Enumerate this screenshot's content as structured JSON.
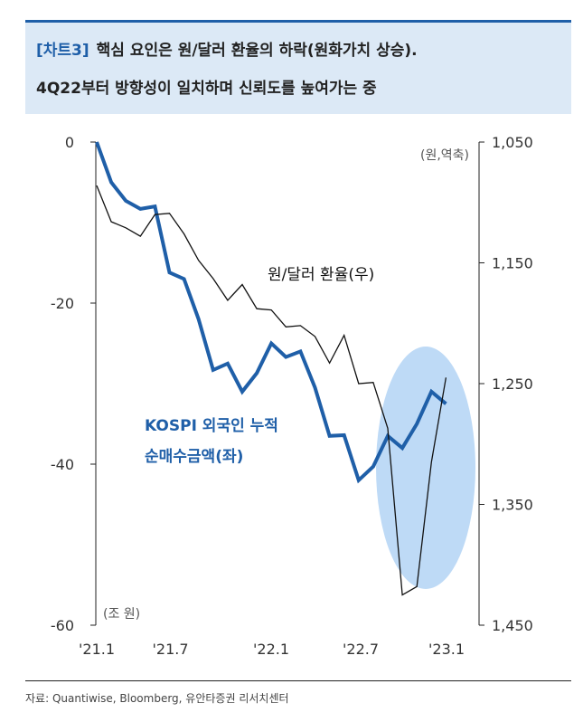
{
  "header": {
    "tag": "[차트3]",
    "line1": "핵심 요인은 원/달러 환율의 하락(원화가치 상승).",
    "line2": "4Q22부터 방향성이 일치하며 신뢰도를 높여가는 중"
  },
  "chart_data": {
    "type": "line",
    "x_ticks": [
      "'21.1",
      "'21.7",
      "'22.1",
      "'22.7",
      "'23.1"
    ],
    "y_left": {
      "ticks": [
        "0",
        "-20",
        "-40",
        "-60"
      ],
      "range": [
        -60,
        0
      ],
      "unit_label": "(조 원)"
    },
    "y_right": {
      "ticks": [
        "1,050",
        "1,150",
        "1,250",
        "1,350",
        "1,450"
      ],
      "range": [
        1050,
        1450
      ],
      "inverted": true,
      "unit_label": "(원,역축)"
    },
    "highlight": {
      "type": "ellipse",
      "color": "#b3d4f5",
      "period": "'22.9 - '23.1"
    },
    "series": [
      {
        "name": "KOSPI 외국인 누적\n순매수금액(좌)",
        "name_lines": [
          "KOSPI 외국인 누적",
          "순매수금액(좌)"
        ],
        "axis": "left",
        "color": "#1f5fa8",
        "x": [
          "2021-01",
          "2021-02",
          "2021-03",
          "2021-04",
          "2021-05",
          "2021-06",
          "2021-07",
          "2021-08",
          "2021-09",
          "2021-10",
          "2021-11",
          "2021-12",
          "2022-01",
          "2022-02",
          "2022-03",
          "2022-04",
          "2022-05",
          "2022-06",
          "2022-07",
          "2022-08",
          "2022-09",
          "2022-10",
          "2022-11",
          "2022-12",
          "2023-01"
        ],
        "values": [
          0,
          -5,
          -7.3,
          -8.3,
          -8.0,
          -16.2,
          -17.0,
          -22.0,
          -28.3,
          -27.5,
          -31.0,
          -28.7,
          -25.0,
          -26.7,
          -26.0,
          -30.5,
          -36.5,
          -36.4,
          -42.0,
          -40.3,
          -36.5,
          -38.0,
          -35.0,
          -31.0,
          -32.5
        ]
      },
      {
        "name": "원/달러 환율(우)",
        "axis": "right",
        "color": "#111111",
        "x": [
          "2021-01",
          "2021-02",
          "2021-03",
          "2021-04",
          "2021-05",
          "2021-06",
          "2021-07",
          "2021-08",
          "2021-09",
          "2021-10",
          "2021-11",
          "2021-12",
          "2022-01",
          "2022-02",
          "2022-03",
          "2022-04",
          "2022-05",
          "2022-06",
          "2022-07",
          "2022-08",
          "2022-09",
          "2022-10",
          "2022-11",
          "2022-12",
          "2023-01"
        ],
        "values": [
          1086,
          1116,
          1121,
          1128,
          1110,
          1109,
          1126,
          1148,
          1163,
          1181,
          1168,
          1188,
          1189,
          1203,
          1202,
          1211,
          1233,
          1210,
          1250,
          1249,
          1287,
          1425,
          1418,
          1315,
          1245
        ]
      }
    ]
  },
  "source": "자료: Quantiwise, Bloomberg, 유안타증권 리서치센터"
}
